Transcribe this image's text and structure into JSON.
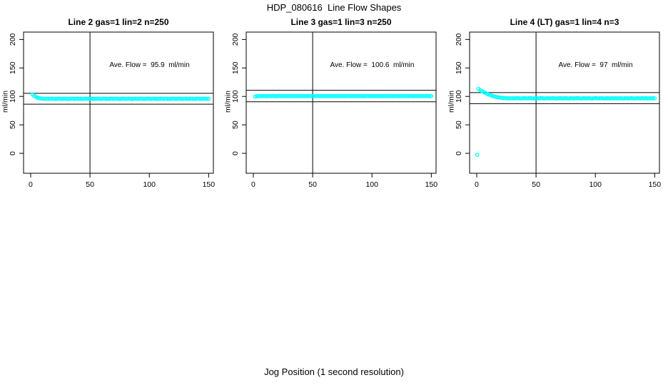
{
  "main_title": "HDP_080616  Line Flow Shapes",
  "outer_xlabel": "Jog Position (1 second resolution)",
  "colors": {
    "points": "#00FFFF",
    "axis": "#000000",
    "background": "#FFFFFF",
    "text": "#000000"
  },
  "chart_data": [
    {
      "type": "scatter",
      "title": "Line 2 gas=1 lin=2 n=250",
      "annotation": "Ave. Flow =  95.9  ml/min",
      "ave_flow_ml_min": 95.9,
      "n": 250,
      "gas": 1,
      "lin": 2,
      "ylabel": "ml/min",
      "x_ticks": [
        0,
        50,
        100,
        150
      ],
      "y_ticks": [
        0,
        50,
        100,
        150,
        200
      ],
      "xlim": [
        -6,
        154
      ],
      "ylim": [
        -35,
        213
      ],
      "grid": false,
      "vline_x": 50,
      "hlines": [
        105.5,
        86.3
      ],
      "series": [
        {
          "name": "flow",
          "x_start": 1.5,
          "x_step": 1.5,
          "y": [
            103.4,
            100.9,
            99.0,
            97.7,
            96.8,
            96.3,
            96.0,
            95.8,
            95.8,
            95.9,
            95.7,
            96.0,
            95.8,
            95.6,
            95.9,
            96.1,
            95.8,
            95.7,
            96.0,
            95.9,
            95.6,
            95.8,
            96.1,
            95.9,
            95.7,
            96.0,
            95.8,
            95.9,
            95.6,
            95.8,
            96.0,
            95.7,
            95.9,
            96.1,
            95.8,
            95.6,
            95.9,
            96.0,
            95.7,
            95.8,
            96.1,
            95.9,
            95.6,
            95.8,
            96.0,
            95.9,
            95.7,
            96.1,
            95.8,
            95.6,
            95.9,
            96.0,
            95.8,
            95.7,
            96.1,
            95.9,
            95.6,
            95.8,
            96.0,
            95.7,
            95.9,
            96.1,
            95.8,
            95.6,
            95.9,
            96.0,
            95.7,
            95.8,
            96.1,
            95.9,
            95.6,
            95.8,
            96.0,
            95.9,
            95.7,
            96.1,
            95.8,
            95.6,
            95.9,
            96.0,
            95.8,
            95.7,
            96.1,
            95.9,
            95.6,
            95.8,
            96.0,
            95.7,
            95.9,
            96.1,
            95.8,
            95.6,
            95.9,
            96.0,
            95.7,
            95.8,
            96.0,
            95.9,
            95.8,
            95.9
          ]
        }
      ],
      "outliers": []
    },
    {
      "type": "scatter",
      "title": "Line 3 gas=1 lin=3 n=250",
      "annotation": "Ave. Flow =  100.6  ml/min",
      "ave_flow_ml_min": 100.6,
      "n": 250,
      "gas": 1,
      "lin": 3,
      "ylabel": "ml/min",
      "x_ticks": [
        0,
        50,
        100,
        150
      ],
      "y_ticks": [
        0,
        50,
        100,
        150,
        200
      ],
      "xlim": [
        -6,
        154
      ],
      "ylim": [
        -35,
        213
      ],
      "grid": false,
      "vline_x": 50,
      "hlines": [
        110.7,
        90.5
      ],
      "series": [
        {
          "name": "flow",
          "x_start": 1.5,
          "x_step": 1.5,
          "y": [
            99.6,
            100.3,
            100.5,
            100.7,
            100.5,
            100.8,
            100.6,
            100.4,
            100.7,
            100.5,
            100.8,
            100.6,
            100.4,
            100.6,
            100.9,
            100.5,
            100.7,
            100.4,
            100.6,
            100.8,
            100.5,
            100.7,
            100.6,
            100.4,
            100.8,
            100.6,
            100.5,
            100.7,
            100.4,
            100.6,
            100.8,
            100.5,
            100.7,
            100.6,
            100.4,
            100.8,
            100.6,
            100.5,
            100.7,
            100.4,
            100.6,
            100.8,
            100.5,
            100.7,
            100.6,
            100.4,
            100.8,
            100.6,
            100.5,
            100.7,
            100.4,
            100.6,
            100.8,
            100.5,
            100.7,
            100.6,
            100.4,
            100.8,
            100.6,
            100.5,
            100.7,
            100.4,
            100.6,
            100.8,
            100.5,
            100.7,
            100.6,
            100.4,
            100.8,
            100.6,
            100.5,
            100.7,
            100.4,
            100.6,
            100.8,
            100.5,
            100.7,
            100.6,
            100.4,
            100.8,
            100.6,
            100.5,
            100.7,
            100.4,
            100.6,
            100.8,
            100.5,
            100.7,
            100.6,
            100.4,
            100.8,
            100.6,
            100.5,
            100.7,
            100.6,
            100.5,
            100.7,
            100.6,
            100.5,
            100.6
          ]
        }
      ],
      "outliers": []
    },
    {
      "type": "scatter",
      "title": "Line 4 (LT) gas=1 lin=4 n=3",
      "annotation": "Ave. Flow =  97  ml/min",
      "ave_flow_ml_min": 97,
      "n": 3,
      "gas": 1,
      "lin": 4,
      "ylabel": "ml/min",
      "x_ticks": [
        0,
        50,
        100,
        150
      ],
      "y_ticks": [
        0,
        50,
        100,
        150,
        200
      ],
      "xlim": [
        -6,
        154
      ],
      "ylim": [
        -35,
        213
      ],
      "grid": false,
      "vline_x": 50,
      "hlines": [
        106.7,
        87.3
      ],
      "series": [
        {
          "name": "flow",
          "x_start": 1.5,
          "x_step": 1.5,
          "y": [
            113.2,
            111.0,
            109.1,
            107.3,
            105.7,
            104.2,
            102.9,
            101.7,
            100.7,
            99.8,
            99.0,
            98.3,
            97.9,
            97.4,
            97.1,
            96.9,
            96.8,
            96.7,
            96.6,
            96.9,
            96.5,
            96.8,
            97.1,
            96.6,
            96.4,
            96.8,
            97.0,
            96.5,
            96.7,
            97.1,
            96.6,
            96.4,
            96.9,
            96.7,
            96.5,
            97.0,
            96.8,
            96.4,
            96.6,
            96.9,
            96.5,
            96.7,
            97.0,
            96.6,
            96.4,
            96.8,
            96.9,
            96.5,
            96.7,
            97.0,
            96.6,
            96.4,
            96.8,
            96.7,
            96.5,
            96.9,
            97.0,
            96.6,
            96.4,
            96.8,
            96.7,
            96.5,
            96.9,
            96.6,
            96.4,
            96.8,
            97.0,
            96.5,
            96.7,
            96.9,
            96.6,
            96.4,
            96.8,
            96.7,
            96.5,
            96.9,
            96.6,
            96.8,
            96.5,
            96.7,
            96.9,
            96.4,
            96.6,
            96.8,
            96.5,
            96.7,
            96.9,
            96.6,
            96.4,
            96.8,
            96.7,
            96.5,
            96.9,
            96.6,
            96.8,
            96.5,
            96.7,
            96.6,
            96.8,
            96.6
          ]
        }
      ],
      "outliers": [
        [
          0.5,
          -2.5
        ]
      ]
    }
  ]
}
